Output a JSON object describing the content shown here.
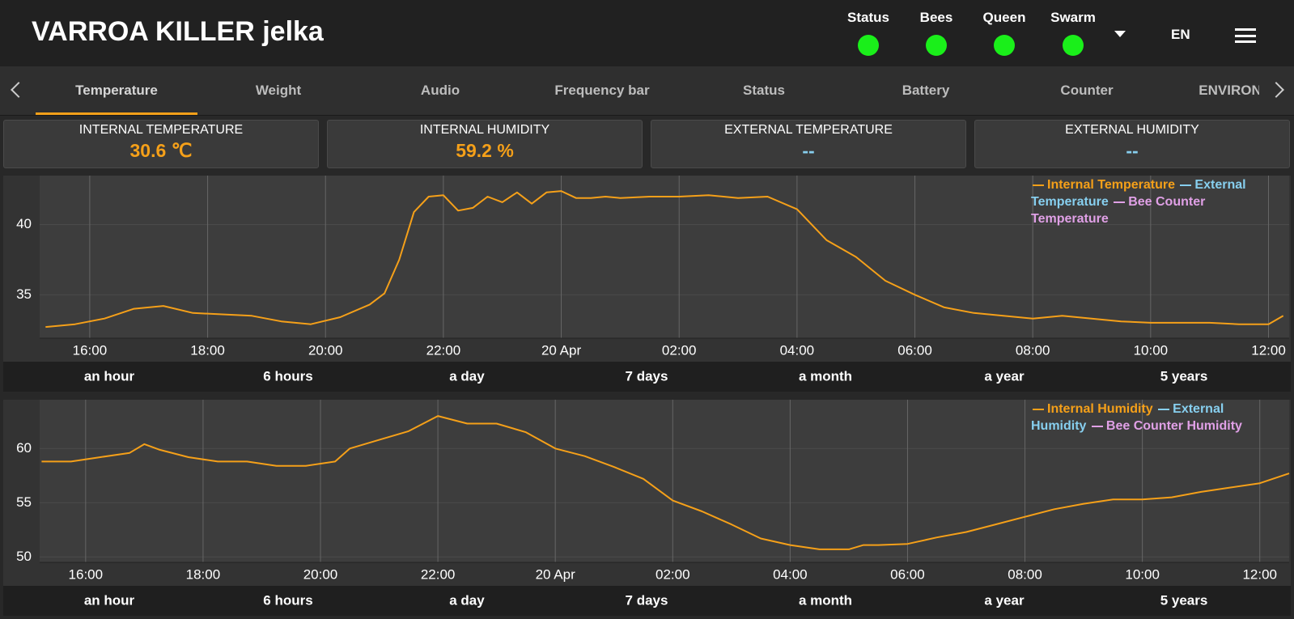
{
  "header": {
    "title": "VARROA KILLER jelka",
    "indicators": [
      "Status",
      "Bees",
      "Queen",
      "Swarm"
    ],
    "indicator_color": "#1aef1a",
    "language": "EN"
  },
  "tabs": [
    "Temperature",
    "Weight",
    "Audio",
    "Frequency bar",
    "Status",
    "Battery",
    "Counter",
    "ENVIRON"
  ],
  "cards": [
    {
      "label": "INTERNAL TEMPERATURE",
      "value": "30.6 ℃",
      "color": "#f5a019"
    },
    {
      "label": "INTERNAL HUMIDITY",
      "value": "59.2 %",
      "color": "#f5a019"
    },
    {
      "label": "EXTERNAL TEMPERATURE",
      "value": "--",
      "color": "#87cfef"
    },
    {
      "label": "EXTERNAL HUMIDITY",
      "value": "--",
      "color": "#87cfef"
    }
  ],
  "range_buttons": [
    "an hour",
    "6 hours",
    "a day",
    "7 days",
    "a month",
    "a year",
    "5 years"
  ],
  "chart_data": [
    {
      "type": "line",
      "grid": true,
      "legend": "upper right",
      "x": [
        "15:15",
        "15:45",
        "16:15",
        "16:45",
        "17:15",
        "17:45",
        "18:15",
        "18:45",
        "19:15",
        "19:45",
        "20:15",
        "20:45",
        "21:00",
        "21:15",
        "21:30",
        "21:45",
        "22:00",
        "22:15",
        "22:30",
        "22:45",
        "23:00",
        "23:15",
        "23:30",
        "23:45",
        "00:00",
        "00:15",
        "00:30",
        "00:45",
        "01:00",
        "01:30",
        "02:00",
        "02:30",
        "03:00",
        "03:30",
        "04:00",
        "04:30",
        "05:00",
        "05:30",
        "06:00",
        "06:30",
        "07:00",
        "07:30",
        "08:00",
        "08:30",
        "09:00",
        "09:30",
        "10:00",
        "10:30",
        "11:00",
        "11:30",
        "12:00",
        "12:15"
      ],
      "xlim": [
        "15:09",
        "12:21"
      ],
      "xticks": [
        "16:00",
        "18:00",
        "20:00",
        "22:00",
        {
          "value": "00:00",
          "label": "20 Apr"
        },
        "02:00",
        "04:00",
        "06:00",
        "08:00",
        "10:00",
        "12:00"
      ],
      "ylim": [
        31.9,
        43.5
      ],
      "yticks": [
        35,
        40
      ],
      "series": [
        {
          "name": "Internal Temperature",
          "color": "#f5a019",
          "values": [
            32.7,
            32.9,
            33.3,
            34.0,
            34.2,
            33.7,
            33.6,
            33.5,
            33.1,
            32.9,
            33.4,
            34.3,
            35.1,
            37.5,
            40.9,
            42.0,
            42.1,
            41.0,
            41.2,
            42.0,
            41.6,
            42.3,
            41.5,
            42.3,
            42.4,
            41.9,
            41.9,
            42.0,
            41.9,
            42.0,
            42.0,
            42.1,
            41.9,
            42.0,
            41.1,
            38.9,
            37.7,
            36.0,
            35.0,
            34.1,
            33.7,
            33.5,
            33.3,
            33.5,
            33.3,
            33.1,
            33.0,
            33.0,
            33.0,
            32.9,
            32.9,
            33.5
          ]
        },
        {
          "name": "External Temperature",
          "color": "#87cfef",
          "values": [
            null,
            null,
            null,
            null,
            null,
            null,
            null,
            null,
            null,
            null,
            null,
            null,
            null,
            null,
            null,
            null,
            null,
            null,
            null,
            null,
            null,
            null,
            null,
            null,
            null,
            null,
            null,
            null,
            null,
            null,
            null,
            null,
            null,
            null,
            null,
            null,
            null,
            null,
            null,
            null,
            null,
            null,
            null,
            null,
            null,
            null,
            null,
            null,
            null,
            null,
            null,
            null
          ]
        },
        {
          "name": "Bee Counter Temperature",
          "color": "#e0a0e6",
          "values": [
            null,
            null,
            null,
            null,
            null,
            null,
            null,
            null,
            null,
            null,
            null,
            null,
            null,
            null,
            null,
            null,
            null,
            null,
            null,
            null,
            null,
            null,
            null,
            null,
            null,
            null,
            null,
            null,
            null,
            null,
            null,
            null,
            null,
            null,
            null,
            null,
            null,
            null,
            null,
            null,
            null,
            null,
            null,
            null,
            null,
            null,
            null,
            null,
            null,
            null,
            null,
            null
          ]
        }
      ]
    },
    {
      "type": "line",
      "grid": true,
      "legend": "upper right",
      "x": [
        "15:15",
        "15:45",
        "16:15",
        "16:45",
        "17:00",
        "17:15",
        "17:45",
        "18:15",
        "18:45",
        "19:15",
        "19:45",
        "20:15",
        "20:30",
        "21:00",
        "21:30",
        "22:00",
        "22:30",
        "23:00",
        "23:30",
        "00:00",
        "00:30",
        "01:00",
        "01:30",
        "02:00",
        "02:30",
        "03:00",
        "03:30",
        "04:00",
        "04:30",
        "05:00",
        "05:15",
        "05:30",
        "06:00",
        "06:30",
        "07:00",
        "07:30",
        "08:00",
        "08:30",
        "09:00",
        "09:30",
        "10:00",
        "10:30",
        "11:00",
        "11:30",
        "12:00",
        "12:30"
      ],
      "xlim": [
        "15:13",
        "12:30"
      ],
      "xticks": [
        "16:00",
        "18:00",
        "20:00",
        "22:00",
        {
          "value": "00:00",
          "label": "20 Apr"
        },
        "02:00",
        "04:00",
        "06:00",
        "08:00",
        "10:00",
        "12:00"
      ],
      "ylim": [
        49.5,
        64.5
      ],
      "yticks": [
        50,
        55,
        60
      ],
      "series": [
        {
          "name": "Internal Humidity",
          "color": "#f5a019",
          "values": [
            58.8,
            58.8,
            59.2,
            59.6,
            60.4,
            59.9,
            59.2,
            58.8,
            58.8,
            58.4,
            58.4,
            58.8,
            60.0,
            60.8,
            61.6,
            63.0,
            62.3,
            62.3,
            61.5,
            60.0,
            59.3,
            58.3,
            57.2,
            55.2,
            54.2,
            53.0,
            51.7,
            51.1,
            50.7,
            50.7,
            51.1,
            51.1,
            51.2,
            51.8,
            52.3,
            53.0,
            53.7,
            54.4,
            54.9,
            55.3,
            55.3,
            55.5,
            56.0,
            56.4,
            56.8,
            57.7
          ]
        },
        {
          "name": "External Humidity",
          "color": "#87cfef",
          "values": [
            null,
            null,
            null,
            null,
            null,
            null,
            null,
            null,
            null,
            null,
            null,
            null,
            null,
            null,
            null,
            null,
            null,
            null,
            null,
            null,
            null,
            null,
            null,
            null,
            null,
            null,
            null,
            null,
            null,
            null,
            null,
            null,
            null,
            null,
            null,
            null,
            null,
            null,
            null,
            null,
            null,
            null,
            null,
            null,
            null,
            null
          ]
        },
        {
          "name": "Bee Counter Humidity",
          "color": "#e0a0e6",
          "values": [
            null,
            null,
            null,
            null,
            null,
            null,
            null,
            null,
            null,
            null,
            null,
            null,
            null,
            null,
            null,
            null,
            null,
            null,
            null,
            null,
            null,
            null,
            null,
            null,
            null,
            null,
            null,
            null,
            null,
            null,
            null,
            null,
            null,
            null,
            null,
            null,
            null,
            null,
            null,
            null,
            null,
            null,
            null,
            null,
            null,
            null
          ]
        }
      ]
    }
  ]
}
